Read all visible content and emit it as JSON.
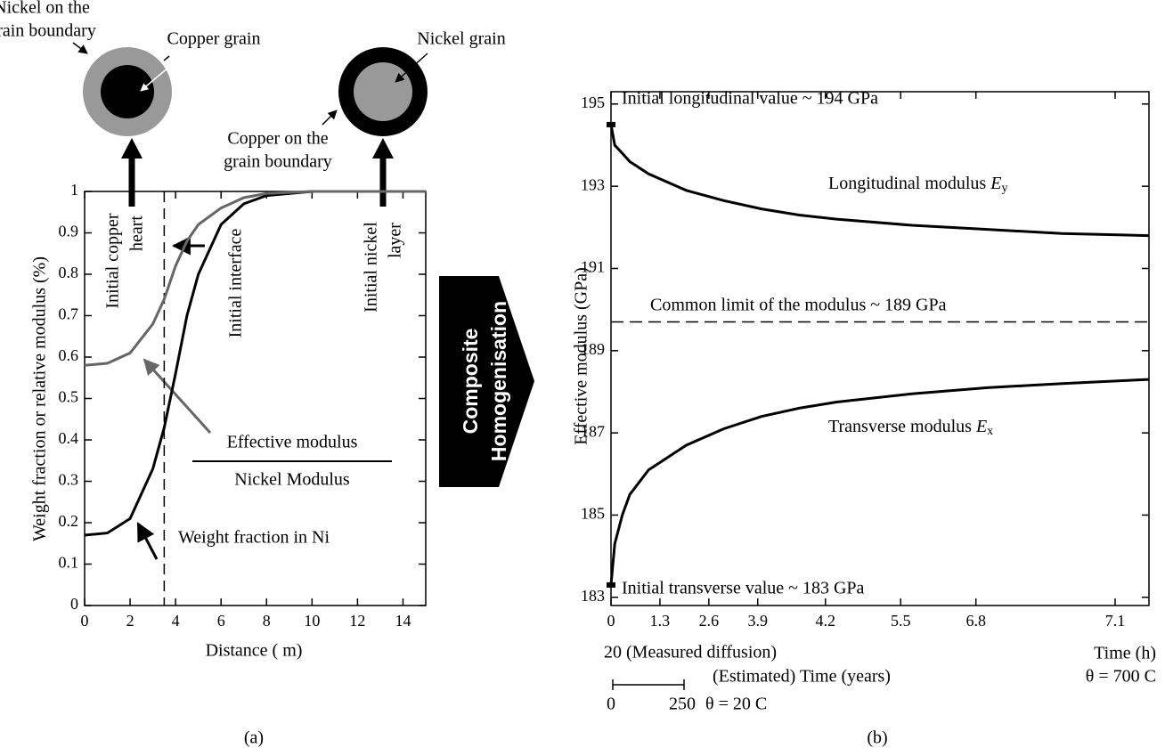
{
  "chart_data": [
    {
      "type": "line",
      "x": [
        0,
        1,
        2,
        3,
        3.5,
        4,
        4.5,
        5,
        6,
        7,
        8,
        10,
        12,
        15
      ],
      "series": [
        {
          "color": "#000000",
          "values": [
            0.17,
            0.175,
            0.21,
            0.33,
            0.43,
            0.56,
            0.7,
            0.8,
            0.92,
            0.97,
            0.99,
            1,
            1,
            1
          ]
        },
        {
          "color": "#666666",
          "values": [
            0.58,
            0.585,
            0.61,
            0.68,
            0.74,
            0.82,
            0.88,
            0.92,
            0.96,
            0.985,
            0.995,
            1,
            1,
            1
          ]
        }
      ],
      "xlim": [
        0,
        15
      ],
      "ylim": [
        0,
        1
      ],
      "xticks": [
        0,
        2,
        4,
        6,
        8,
        10,
        12,
        14
      ],
      "yticks": [
        0,
        0.1,
        0.2,
        0.3,
        0.4,
        0.5,
        0.6,
        0.7,
        0.8,
        0.9,
        1
      ],
      "x_label": "Distance ( m)",
      "y_label": "Weight fraction or relative modulus (%)",
      "interface_x": 3.5,
      "annotations": {
        "nickel_boundary": [
          "Nickel on the",
          "grain boundary"
        ],
        "copper_grain": "Copper grain",
        "nickel_grain": "Nickel grain",
        "copper_boundary": [
          "Copper on the",
          "grain boundary"
        ],
        "copper_heart": [
          "Initial copper",
          "heart"
        ],
        "interface": "Initial interface",
        "nickel_layer": [
          "Initial nickel",
          "layer"
        ],
        "modulus_ratio": [
          "Effective modulus",
          "Nickel Modulus"
        ],
        "weight_fraction": "Weight fraction in Ni"
      },
      "panel_label": "(a)"
    },
    {
      "type": "line",
      "x": [
        0,
        0.1,
        0.3,
        0.5,
        1,
        2,
        3,
        4,
        5,
        6,
        8,
        10,
        12,
        14.3
      ],
      "series": [
        {
          "color": "#000000",
          "values": [
            194.5,
            194.0,
            193.8,
            193.6,
            193.3,
            192.9,
            192.65,
            192.45,
            192.3,
            192.2,
            192.05,
            191.95,
            191.85,
            191.8
          ]
        },
        {
          "color": "#000000",
          "values": [
            183.3,
            184.3,
            185,
            185.5,
            186.1,
            186.7,
            187.1,
            187.4,
            187.6,
            187.75,
            187.95,
            188.1,
            188.2,
            188.3
          ]
        }
      ],
      "xlim": [
        0,
        14.3
      ],
      "ylim": [
        182.8,
        195.3
      ],
      "xticks": [
        0,
        1.3,
        2.6,
        3.9,
        {
          "value": 5.7,
          "label": "4.2"
        },
        {
          "value": 7.7,
          "label": "5.5"
        },
        {
          "value": 9.7,
          "label": "6.8"
        },
        {
          "value": 13.4,
          "label": "7.1"
        }
      ],
      "yticks": [
        183,
        185,
        187,
        189,
        191,
        193,
        195
      ],
      "y_label": "Effective modulus (GPa)",
      "common_limit": 189.7,
      "annotations": {
        "initial_longitudinal": "Initial longitudinal value ~ 194 GPa",
        "longitudinal": {
          "text": "Longitudinal modulus",
          "symbol": "E",
          "subscript": "y"
        },
        "limit": "Common limit of the modulus ~ 189 GPa",
        "transverse": {
          "text": "Transverse modulus",
          "symbol": "E",
          "subscript": "x"
        },
        "initial_transverse": "Initial transverse value ~ 183 GPa",
        "measured": "20  (Measured diffusion)",
        "time_h": "Time (h)",
        "theta_700": "θ = 700 C",
        "estimated": "(Estimated) Time (years)",
        "scale_start": "0",
        "scale_end": "250",
        "theta_20": "θ = 20 C"
      },
      "panel_label": "(b)"
    }
  ],
  "transition_label": [
    "Composite",
    "Homogenisation"
  ]
}
